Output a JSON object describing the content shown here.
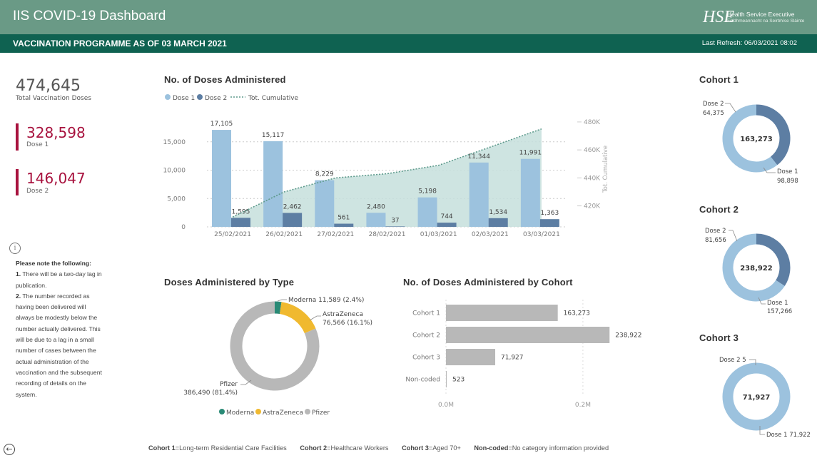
{
  "header": {
    "app_title": "IIS COVID-19 Dashboard",
    "logo_line1": "Health Service Executive",
    "logo_line2": "Feidhmeannacht na Seirbhíse Sláinte",
    "subtitle": "VACCINATION PROGRAMME AS OF 03 MARCH 2021",
    "last_refresh": "Last Refresh: 06/03/2021 08:02"
  },
  "kpis": {
    "total_value": "474,645",
    "total_label": "Total Vaccination Doses",
    "dose1_value": "328,598",
    "dose1_label": "Dose 1",
    "dose2_value": "146,047",
    "dose2_label": "Dose 2"
  },
  "notes": {
    "heading": "Please note the following:",
    "items": [
      {
        "num": "1.",
        "text": "There will be a two-day lag in publication."
      },
      {
        "num": "2.",
        "text": "The number recorded as having been delivered will always be modestly below the number actually delivered.  This will be due to a lag in a small number of cases between the actual administration of the vaccination and the subsequent recording of details on the system."
      }
    ]
  },
  "footer": [
    {
      "key": "Cohort 1",
      "val": "=Long-term Residential Care Facilities"
    },
    {
      "key": "Cohort 2",
      "val": "=Healthcare Workers"
    },
    {
      "key": "Cohort 3",
      "val": "=Aged 70+"
    },
    {
      "key": "Non-coded",
      "val": "=No category information provided"
    }
  ],
  "colors": {
    "header_bg": "#6a9a86",
    "subheader_bg": "#0f6251",
    "kpi_accent": "#a8123e",
    "dose1": "#9cc2de",
    "dose2": "#5d7ea3",
    "area": "#c6dfdc",
    "moderna": "#2a8a76",
    "astrazeneca": "#f0b92f",
    "pfizer": "#b8b8b8",
    "cohort_bar": "#b8b8b8"
  },
  "chart_data": [
    {
      "id": "doses",
      "type": "bar",
      "title": "No. of Doses Administered",
      "legend": [
        "Dose 1",
        "Dose 2",
        "Tot. Cumulative"
      ],
      "categories": [
        "25/02/2021",
        "26/02/2021",
        "27/02/2021",
        "28/02/2021",
        "01/03/2021",
        "02/03/2021",
        "03/03/2021"
      ],
      "series": [
        {
          "name": "Dose 1",
          "values": [
            17105,
            15117,
            8229,
            2480,
            5198,
            11344,
            11991
          ],
          "labels": [
            "17,105",
            "15,117",
            "8,229",
            "2,480",
            "5,198",
            "11,344",
            "11,991"
          ]
        },
        {
          "name": "Dose 2",
          "values": [
            1595,
            2462,
            561,
            37,
            744,
            1534,
            1363
          ],
          "labels": [
            "1,595",
            "2,462",
            "561",
            "37",
            "744",
            "1,534",
            "1,363"
          ]
        },
        {
          "name": "Tot. Cumulative",
          "axis": "right",
          "values": [
            412000,
            430000,
            440000,
            443000,
            449000,
            462000,
            475000
          ]
        }
      ],
      "y_ticks": [
        "0",
        "5,000",
        "10,000",
        "15,000"
      ],
      "ylim": [
        0,
        19000
      ],
      "y2_ticks": [
        "420K",
        "440K",
        "460K",
        "480K"
      ],
      "y2lim": [
        405000,
        482000
      ],
      "y2label": "Tot. Cumulative",
      "grid": true
    },
    {
      "id": "type",
      "type": "pie",
      "title": "Doses Administered by Type",
      "legend": [
        "Moderna",
        "AstraZeneca",
        "Pfizer"
      ],
      "slices": [
        {
          "name": "Moderna",
          "value": 11589,
          "label": "Moderna 11,589 (2.4%)"
        },
        {
          "name": "AstraZeneca",
          "value": 76566,
          "label1": "AstraZeneca",
          "label2": "76,566 (16.1%)"
        },
        {
          "name": "Pfizer",
          "value": 386490,
          "label1": "Pfizer",
          "label2": "386,490 (81.4%)"
        }
      ]
    },
    {
      "id": "cohort",
      "type": "bar",
      "title": "No. of Doses Administered by Cohort",
      "categories": [
        "Cohort 1",
        "Cohort 2",
        "Cohort 3",
        "Non-coded"
      ],
      "values": [
        163273,
        238922,
        71927,
        523
      ],
      "labels": [
        "163,273",
        "238,922",
        "71,927",
        "523"
      ],
      "x_ticks": [
        "0.0M",
        "0.2M"
      ],
      "xlim": [
        0,
        0.24
      ]
    },
    {
      "id": "cohort1",
      "type": "pie",
      "title": "Cohort 1",
      "center_label": "163,273",
      "slices": [
        {
          "name": "Dose 1",
          "value": 98898,
          "label1": "Dose 1",
          "label2": "98,898"
        },
        {
          "name": "Dose 2",
          "value": 64375,
          "label1": "Dose 2",
          "label2": "64,375"
        }
      ]
    },
    {
      "id": "cohort2",
      "type": "pie",
      "title": "Cohort 2",
      "center_label": "238,922",
      "slices": [
        {
          "name": "Dose 1",
          "value": 157266,
          "label1": "Dose 1",
          "label2": "157,266"
        },
        {
          "name": "Dose 2",
          "value": 81656,
          "label1": "Dose 2",
          "label2": "81,656"
        }
      ]
    },
    {
      "id": "cohort3",
      "type": "pie",
      "title": "Cohort 3",
      "center_label": "71,927",
      "slices": [
        {
          "name": "Dose 1",
          "value": 71922,
          "label": "Dose 1 71,922"
        },
        {
          "name": "Dose 2",
          "value": 5,
          "label": "Dose 2 5"
        }
      ]
    }
  ]
}
